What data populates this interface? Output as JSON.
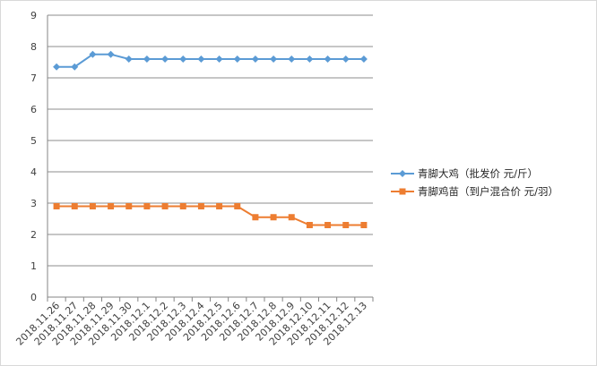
{
  "chart_data": {
    "type": "line",
    "categories": [
      "2018.11.26",
      "2018.11.27",
      "2018.11.28",
      "2018.11.29",
      "2018.11.30",
      "2018.12.1",
      "2018.12.2",
      "2018.12.3",
      "2018.12.4",
      "2018.12.5",
      "2018.12.6",
      "2018.12.7",
      "2018.12.8",
      "2018.12.9",
      "2018.12.10",
      "2018.12.11",
      "2018.12.12",
      "2018.12.13"
    ],
    "series": [
      {
        "name": "青脚大鸡（批发价 元/斤）",
        "color": "#5b9bd5",
        "marker": "diamond",
        "values": [
          7.35,
          7.35,
          7.75,
          7.75,
          7.6,
          7.6,
          7.6,
          7.6,
          7.6,
          7.6,
          7.6,
          7.6,
          7.6,
          7.6,
          7.6,
          7.6,
          7.6,
          7.6
        ]
      },
      {
        "name": "青脚鸡苗（到户混合价 元/羽）",
        "color": "#ed7d31",
        "marker": "square",
        "values": [
          2.9,
          2.9,
          2.9,
          2.9,
          2.9,
          2.9,
          2.9,
          2.9,
          2.9,
          2.9,
          2.9,
          2.55,
          2.55,
          2.55,
          2.3,
          2.3,
          2.3,
          2.3
        ]
      }
    ],
    "yticks": [
      "0",
      "1",
      "2",
      "3",
      "4",
      "5",
      "6",
      "7",
      "8",
      "9"
    ],
    "ylim": [
      0,
      9
    ],
    "grid": true,
    "legend": "right"
  }
}
